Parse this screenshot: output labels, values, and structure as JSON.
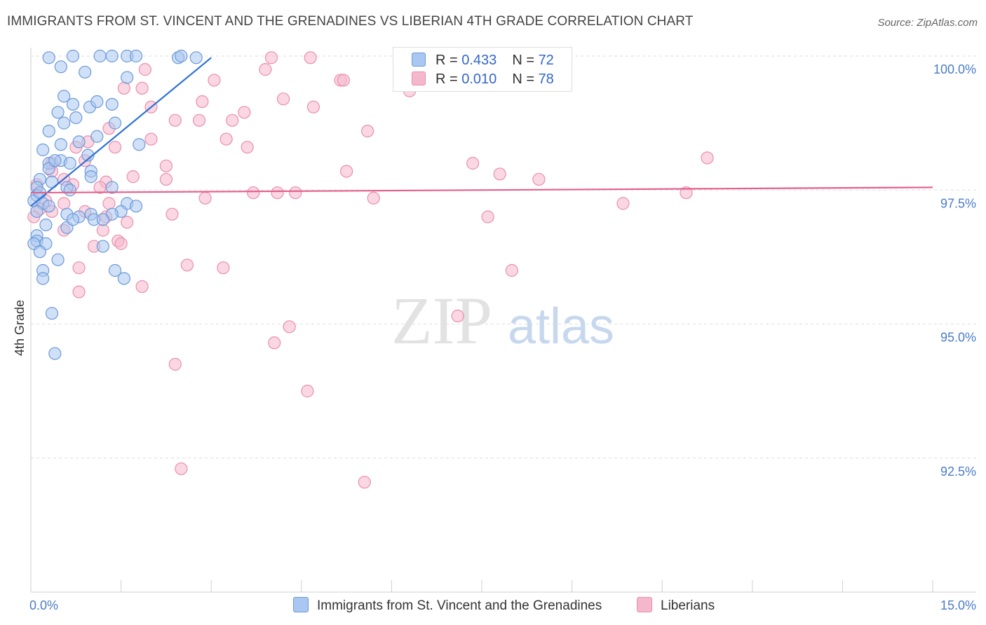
{
  "title": "IMMIGRANTS FROM ST. VINCENT AND THE GRENADINES VS LIBERIAN 4TH GRADE CORRELATION CHART",
  "source": "Source: ZipAtlas.com",
  "watermark": {
    "zip": "ZIP",
    "atlas": "atlas"
  },
  "colors": {
    "blue_fill": "#a9c7f0",
    "blue_stroke": "#6c9ad8",
    "blue_line": "#2e72d2",
    "pink_fill": "#f5b7cb",
    "pink_stroke": "#e98fae",
    "pink_line": "#e45f8c",
    "tick_text": "#4a7cc7"
  },
  "legend": {
    "blue": {
      "r_label": "R = ",
      "r_value": "0.433",
      "n_label": "N = ",
      "n_value": "72"
    },
    "pink": {
      "r_label": "R = ",
      "r_value": "0.010",
      "n_label": "N = ",
      "n_value": "78"
    }
  },
  "bottom_legend": {
    "blue": "Immigrants from St. Vincent and the Grenadines",
    "pink": "Liberians"
  },
  "chart_data": {
    "type": "scatter",
    "title": "IMMIGRANTS FROM ST. VINCENT AND THE GRENADINES VS LIBERIAN 4TH GRADE CORRELATION CHART",
    "xlabel": "",
    "ylabel": "4th Grade",
    "xlim": [
      0,
      15
    ],
    "ylim": [
      90.0,
      100.0
    ],
    "x_tick_labels": [
      {
        "value": 0,
        "label": "0.0%"
      },
      {
        "value": 15,
        "label": "15.0%"
      }
    ],
    "y_tick_labels": [
      {
        "value": 100.0,
        "label": "100.0%"
      },
      {
        "value": 97.5,
        "label": "97.5%"
      },
      {
        "value": 95.0,
        "label": "95.0%"
      },
      {
        "value": 92.5,
        "label": "92.5%"
      }
    ],
    "x_minor_ticks": [
      1.5,
      3.0,
      4.5,
      6.0,
      7.5,
      9.0,
      10.5,
      12.0,
      13.5,
      15.0
    ],
    "series": [
      {
        "name": "Immigrants from St. Vincent and the Grenadines",
        "color": "blue",
        "trend": {
          "x": [
            0.0,
            3.0
          ],
          "y": [
            97.2,
            99.97
          ]
        },
        "points": [
          [
            0.3,
            99.97
          ],
          [
            0.7,
            100.0
          ],
          [
            1.15,
            100.0
          ],
          [
            1.35,
            100.0
          ],
          [
            1.6,
            100.0
          ],
          [
            1.75,
            100.0
          ],
          [
            2.45,
            99.97
          ],
          [
            2.5,
            100.0
          ],
          [
            2.75,
            99.97
          ],
          [
            0.5,
            99.8
          ],
          [
            0.9,
            99.7
          ],
          [
            1.6,
            99.6
          ],
          [
            0.55,
            99.25
          ],
          [
            0.7,
            99.1
          ],
          [
            0.98,
            99.05
          ],
          [
            1.1,
            99.15
          ],
          [
            1.35,
            99.1
          ],
          [
            0.45,
            98.95
          ],
          [
            0.55,
            98.75
          ],
          [
            0.75,
            98.85
          ],
          [
            1.4,
            98.75
          ],
          [
            0.3,
            98.6
          ],
          [
            1.1,
            98.5
          ],
          [
            0.5,
            98.35
          ],
          [
            0.8,
            98.4
          ],
          [
            1.8,
            98.35
          ],
          [
            0.2,
            98.25
          ],
          [
            0.3,
            98.0
          ],
          [
            0.5,
            98.05
          ],
          [
            0.65,
            98.0
          ],
          [
            0.95,
            98.15
          ],
          [
            0.3,
            97.9
          ],
          [
            1.0,
            97.85
          ],
          [
            1.0,
            97.75
          ],
          [
            0.15,
            97.7
          ],
          [
            0.35,
            97.65
          ],
          [
            0.6,
            97.55
          ],
          [
            0.65,
            97.5
          ],
          [
            0.1,
            97.55
          ],
          [
            0.1,
            97.4
          ],
          [
            1.35,
            97.55
          ],
          [
            0.05,
            97.3
          ],
          [
            0.2,
            97.25
          ],
          [
            0.3,
            97.2
          ],
          [
            0.1,
            97.1
          ],
          [
            1.0,
            97.05
          ],
          [
            1.6,
            97.25
          ],
          [
            1.5,
            97.1
          ],
          [
            1.35,
            97.05
          ],
          [
            1.75,
            97.2
          ],
          [
            0.6,
            97.05
          ],
          [
            0.8,
            97.0
          ],
          [
            0.25,
            96.85
          ],
          [
            0.6,
            96.8
          ],
          [
            0.1,
            96.65
          ],
          [
            0.1,
            96.55
          ],
          [
            0.25,
            96.5
          ],
          [
            1.2,
            96.45
          ],
          [
            0.05,
            96.5
          ],
          [
            0.45,
            96.2
          ],
          [
            0.2,
            96.0
          ],
          [
            0.2,
            95.85
          ],
          [
            1.4,
            96.0
          ],
          [
            1.55,
            95.85
          ],
          [
            0.35,
            95.2
          ],
          [
            0.4,
            94.45
          ],
          [
            1.05,
            96.95
          ],
          [
            0.7,
            96.95
          ],
          [
            0.15,
            96.35
          ],
          [
            1.2,
            96.95
          ],
          [
            0.4,
            98.05
          ],
          [
            0.15,
            97.45
          ]
        ]
      },
      {
        "name": "Liberians",
        "color": "pink",
        "trend": {
          "x": [
            0.0,
            15.0
          ],
          "y": [
            97.45,
            97.55
          ]
        },
        "points": [
          [
            4.0,
            99.97
          ],
          [
            4.65,
            99.97
          ],
          [
            3.9,
            99.75
          ],
          [
            1.9,
            99.75
          ],
          [
            3.05,
            99.55
          ],
          [
            5.15,
            99.55
          ],
          [
            5.2,
            99.55
          ],
          [
            1.55,
            99.4
          ],
          [
            1.85,
            99.4
          ],
          [
            6.3,
            99.35
          ],
          [
            4.2,
            99.2
          ],
          [
            2.85,
            99.15
          ],
          [
            2.0,
            99.05
          ],
          [
            4.7,
            99.05
          ],
          [
            3.55,
            98.95
          ],
          [
            2.4,
            98.8
          ],
          [
            2.8,
            98.8
          ],
          [
            3.35,
            98.8
          ],
          [
            1.3,
            98.65
          ],
          [
            5.6,
            98.6
          ],
          [
            3.25,
            98.45
          ],
          [
            2.0,
            98.45
          ],
          [
            0.95,
            98.4
          ],
          [
            0.75,
            98.3
          ],
          [
            3.6,
            98.3
          ],
          [
            1.4,
            98.3
          ],
          [
            11.25,
            98.1
          ],
          [
            0.9,
            98.05
          ],
          [
            0.35,
            98.0
          ],
          [
            7.35,
            98.0
          ],
          [
            2.25,
            97.95
          ],
          [
            0.35,
            97.85
          ],
          [
            5.25,
            97.85
          ],
          [
            7.8,
            97.8
          ],
          [
            1.7,
            97.75
          ],
          [
            0.55,
            97.7
          ],
          [
            2.25,
            97.7
          ],
          [
            8.45,
            97.7
          ],
          [
            1.25,
            97.65
          ],
          [
            0.7,
            97.6
          ],
          [
            1.15,
            97.55
          ],
          [
            3.7,
            97.45
          ],
          [
            4.1,
            97.45
          ],
          [
            4.4,
            97.45
          ],
          [
            10.9,
            97.45
          ],
          [
            2.9,
            97.35
          ],
          [
            5.7,
            97.35
          ],
          [
            0.25,
            97.3
          ],
          [
            0.55,
            97.25
          ],
          [
            1.3,
            97.25
          ],
          [
            9.85,
            97.25
          ],
          [
            0.15,
            97.15
          ],
          [
            0.35,
            97.1
          ],
          [
            0.9,
            97.1
          ],
          [
            2.35,
            97.05
          ],
          [
            1.25,
            97.0
          ],
          [
            7.6,
            97.0
          ],
          [
            1.6,
            96.9
          ],
          [
            0.55,
            96.75
          ],
          [
            1.2,
            96.75
          ],
          [
            1.45,
            96.55
          ],
          [
            1.5,
            96.5
          ],
          [
            1.05,
            96.45
          ],
          [
            2.6,
            96.1
          ],
          [
            3.2,
            96.05
          ],
          [
            0.8,
            96.05
          ],
          [
            8.0,
            96.0
          ],
          [
            1.85,
            95.7
          ],
          [
            0.8,
            95.6
          ],
          [
            7.1,
            95.15
          ],
          [
            4.3,
            94.95
          ],
          [
            4.05,
            94.65
          ],
          [
            2.4,
            94.25
          ],
          [
            4.6,
            93.75
          ],
          [
            2.5,
            92.3
          ],
          [
            5.55,
            92.05
          ],
          [
            0.05,
            97.0
          ],
          [
            0.1,
            97.6
          ]
        ]
      }
    ]
  }
}
